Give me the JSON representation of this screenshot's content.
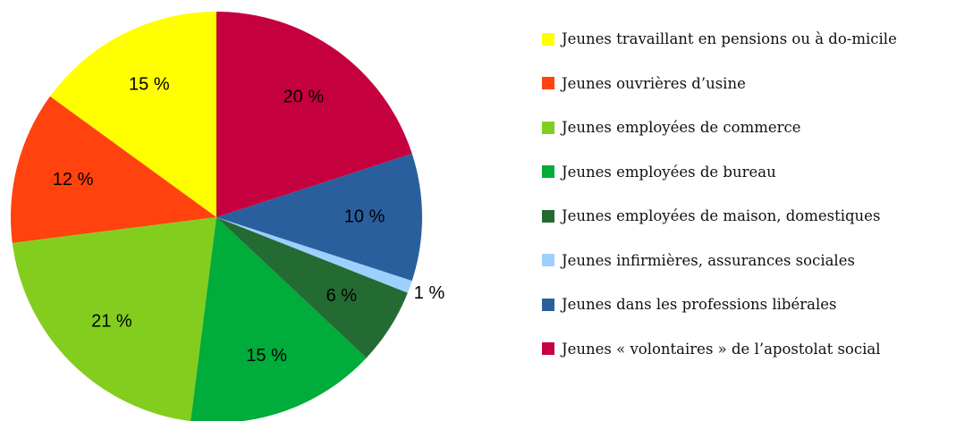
{
  "chart_data": {
    "type": "pie",
    "categories": [
      "Jeunes travaillant en pensions ou à do-micile",
      "Jeunes ouvrières d’usine",
      "Jeunes employées de commerce",
      "Jeunes employées de bureau",
      "Jeunes employées de maison, domestiques",
      "Jeunes infirmières, assurances sociales",
      "Jeunes dans les professions libérales",
      "Jeunes « volontaires » de l’apostolat social"
    ],
    "values": [
      15,
      12,
      21,
      15,
      6,
      1,
      10,
      20
    ],
    "value_labels": [
      "15 %",
      "12 %",
      "21 %",
      "15 %",
      "6 %",
      "1 %",
      "10 %",
      "20 %"
    ],
    "colors": [
      "#ffff00",
      "#ff420e",
      "#83cd1f",
      "#00ac3a",
      "#246b33",
      "#9dd0ff",
      "#2a5f9e",
      "#c5003e"
    ],
    "legend": "right"
  }
}
